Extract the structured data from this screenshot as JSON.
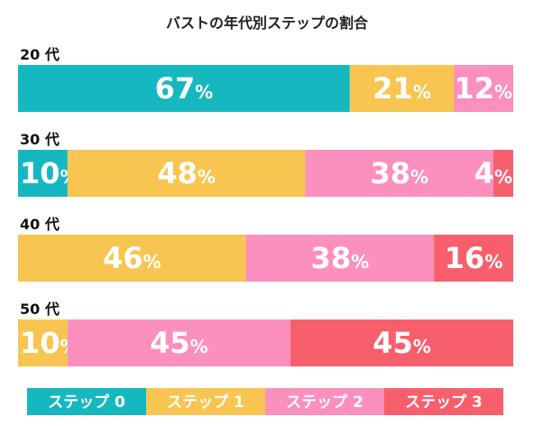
{
  "chart_data": {
    "type": "bar",
    "orientation": "horizontal",
    "stacked": true,
    "percent_stacked": true,
    "title": "バストの年代別ステップの割合",
    "categories": [
      "20 代",
      "30 代",
      "40 代",
      "50 代"
    ],
    "unit": "%",
    "series": [
      {
        "name": "ステップ 0",
        "color": "#15b8c0",
        "values": [
          67,
          10,
          0,
          0
        ]
      },
      {
        "name": "ステップ 1",
        "color": "#f8c550",
        "values": [
          21,
          48,
          46,
          10
        ]
      },
      {
        "name": "ステップ 2",
        "color": "#fb8fbd",
        "values": [
          12,
          38,
          38,
          45
        ]
      },
      {
        "name": "ステップ 3",
        "color": "#f85f6c",
        "values": [
          0,
          4,
          16,
          45
        ]
      }
    ],
    "legend_position": "bottom",
    "grid": false
  }
}
